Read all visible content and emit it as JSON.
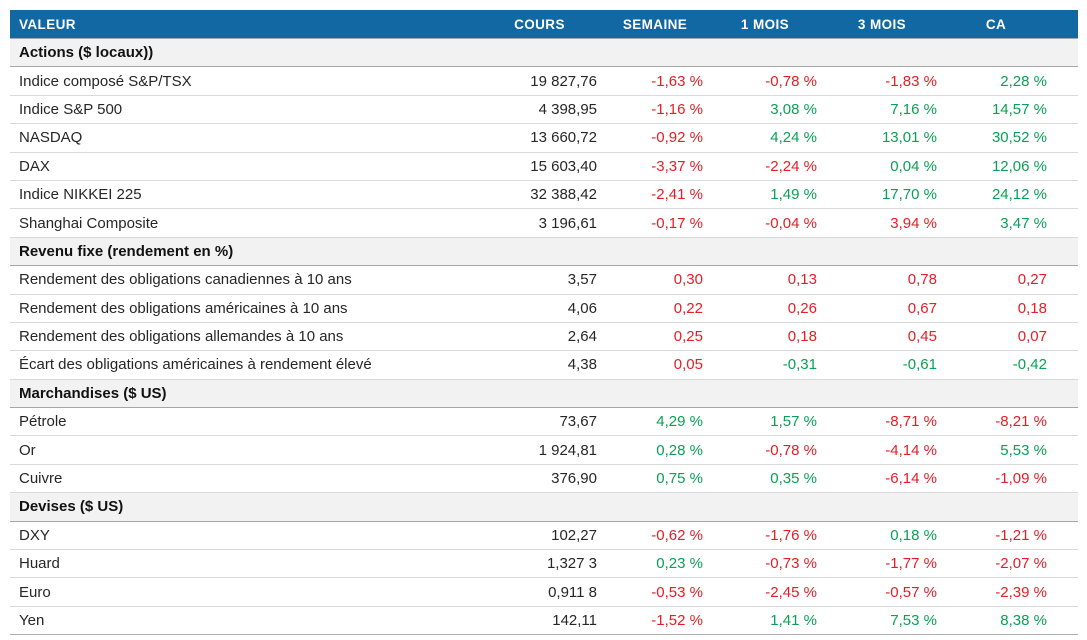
{
  "colors": {
    "header_bg": "#1268a3",
    "header_text": "#ffffff",
    "section_bg": "#f2f2f2",
    "row_border": "#d9d9d9",
    "section_border": "#a6a6a6",
    "negative_text": "#e41e25",
    "positive_text": "#0aa055",
    "value_text": "#262626"
  },
  "chart_data": {
    "type": "table",
    "columns": [
      "VALEUR",
      "COURS",
      "SEMAINE",
      "1 MOIS",
      "3 MOIS",
      "CA"
    ],
    "sections": [
      {
        "title": "Actions ($ locaux))",
        "rows": [
          {
            "label": "Indice composé S&P/TSX",
            "cours": "19 827,76",
            "cells": [
              {
                "v": "-1,63 %",
                "c": "neg"
              },
              {
                "v": "-0,78 %",
                "c": "neg"
              },
              {
                "v": "-1,83 %",
                "c": "neg"
              },
              {
                "v": "2,28 %",
                "c": "pos"
              }
            ]
          },
          {
            "label": "Indice S&P 500",
            "cours": "4 398,95",
            "cells": [
              {
                "v": "-1,16 %",
                "c": "neg"
              },
              {
                "v": "3,08 %",
                "c": "pos"
              },
              {
                "v": "7,16 %",
                "c": "pos"
              },
              {
                "v": "14,57 %",
                "c": "pos"
              }
            ]
          },
          {
            "label": "NASDAQ",
            "cours": "13 660,72",
            "cells": [
              {
                "v": "-0,92 %",
                "c": "neg"
              },
              {
                "v": "4,24 %",
                "c": "pos"
              },
              {
                "v": "13,01 %",
                "c": "pos"
              },
              {
                "v": "30,52 %",
                "c": "pos"
              }
            ]
          },
          {
            "label": "DAX",
            "cours": "15 603,40",
            "cells": [
              {
                "v": "-3,37 %",
                "c": "neg"
              },
              {
                "v": "-2,24 %",
                "c": "neg"
              },
              {
                "v": "0,04 %",
                "c": "pos"
              },
              {
                "v": "12,06 %",
                "c": "pos"
              }
            ]
          },
          {
            "label": "Indice NIKKEI 225",
            "cours": "32 388,42",
            "cells": [
              {
                "v": "-2,41 %",
                "c": "neg"
              },
              {
                "v": "1,49 %",
                "c": "pos"
              },
              {
                "v": "17,70 %",
                "c": "pos"
              },
              {
                "v": "24,12 %",
                "c": "pos"
              }
            ]
          },
          {
            "label": "Shanghai Composite",
            "cours": "3 196,61",
            "cells": [
              {
                "v": "-0,17 %",
                "c": "neg"
              },
              {
                "v": "-0,04 %",
                "c": "neg"
              },
              {
                "v": "3,94 %",
                "c": "neg"
              },
              {
                "v": "3,47 %",
                "c": "pos"
              }
            ]
          }
        ]
      },
      {
        "title": "Revenu fixe (rendement en %)",
        "rows": [
          {
            "label": "Rendement des obligations canadiennes à 10 ans",
            "cours": "3,57",
            "cells": [
              {
                "v": "0,30",
                "c": "neg"
              },
              {
                "v": "0,13",
                "c": "neg"
              },
              {
                "v": "0,78",
                "c": "neg"
              },
              {
                "v": "0,27",
                "c": "neg"
              }
            ]
          },
          {
            "label": "Rendement des obligations américaines à 10 ans",
            "cours": "4,06",
            "cells": [
              {
                "v": "0,22",
                "c": "neg"
              },
              {
                "v": "0,26",
                "c": "neg"
              },
              {
                "v": "0,67",
                "c": "neg"
              },
              {
                "v": "0,18",
                "c": "neg"
              }
            ]
          },
          {
            "label": "Rendement des obligations allemandes à 10 ans",
            "cours": "2,64",
            "cells": [
              {
                "v": "0,25",
                "c": "neg"
              },
              {
                "v": "0,18",
                "c": "neg"
              },
              {
                "v": "0,45",
                "c": "neg"
              },
              {
                "v": "0,07",
                "c": "neg"
              }
            ]
          },
          {
            "label": "Écart des obligations américaines à rendement élevé",
            "cours": "4,38",
            "cells": [
              {
                "v": "0,05",
                "c": "neg"
              },
              {
                "v": "-0,31",
                "c": "pos"
              },
              {
                "v": "-0,61",
                "c": "pos"
              },
              {
                "v": "-0,42",
                "c": "pos"
              }
            ]
          }
        ]
      },
      {
        "title": "Marchandises ($ US)",
        "rows": [
          {
            "label": "Pétrole",
            "cours": "73,67",
            "cells": [
              {
                "v": "4,29 %",
                "c": "pos"
              },
              {
                "v": "1,57 %",
                "c": "pos"
              },
              {
                "v": "-8,71 %",
                "c": "neg"
              },
              {
                "v": "-8,21 %",
                "c": "neg"
              }
            ]
          },
          {
            "label": "Or",
            "cours": "1 924,81",
            "cells": [
              {
                "v": "0,28 %",
                "c": "pos"
              },
              {
                "v": "-0,78 %",
                "c": "neg"
              },
              {
                "v": "-4,14 %",
                "c": "neg"
              },
              {
                "v": "5,53 %",
                "c": "pos"
              }
            ]
          },
          {
            "label": "Cuivre",
            "cours": "376,90",
            "cells": [
              {
                "v": "0,75 %",
                "c": "pos"
              },
              {
                "v": "0,35 %",
                "c": "pos"
              },
              {
                "v": "-6,14 %",
                "c": "neg"
              },
              {
                "v": "-1,09 %",
                "c": "neg"
              }
            ]
          }
        ]
      },
      {
        "title": "Devises ($ US)",
        "rows": [
          {
            "label": "DXY",
            "cours": "102,27",
            "cells": [
              {
                "v": "-0,62 %",
                "c": "neg"
              },
              {
                "v": "-1,76 %",
                "c": "neg"
              },
              {
                "v": "0,18 %",
                "c": "pos"
              },
              {
                "v": "-1,21 %",
                "c": "neg"
              }
            ]
          },
          {
            "label": "Huard",
            "cours": "1,327 3",
            "cells": [
              {
                "v": "0,23 %",
                "c": "pos"
              },
              {
                "v": "-0,73 %",
                "c": "neg"
              },
              {
                "v": "-1,77 %",
                "c": "neg"
              },
              {
                "v": "-2,07 %",
                "c": "neg"
              }
            ]
          },
          {
            "label": "Euro",
            "cours": "0,911 8",
            "cells": [
              {
                "v": "-0,53 %",
                "c": "neg"
              },
              {
                "v": "-2,45 %",
                "c": "neg"
              },
              {
                "v": "-0,57 %",
                "c": "neg"
              },
              {
                "v": "-2,39 %",
                "c": "neg"
              }
            ]
          },
          {
            "label": "Yen",
            "cours": "142,11",
            "cells": [
              {
                "v": "-1,52 %",
                "c": "neg"
              },
              {
                "v": "1,41 %",
                "c": "pos"
              },
              {
                "v": "7,53 %",
                "c": "pos"
              },
              {
                "v": "8,38 %",
                "c": "pos"
              }
            ]
          }
        ]
      }
    ]
  }
}
